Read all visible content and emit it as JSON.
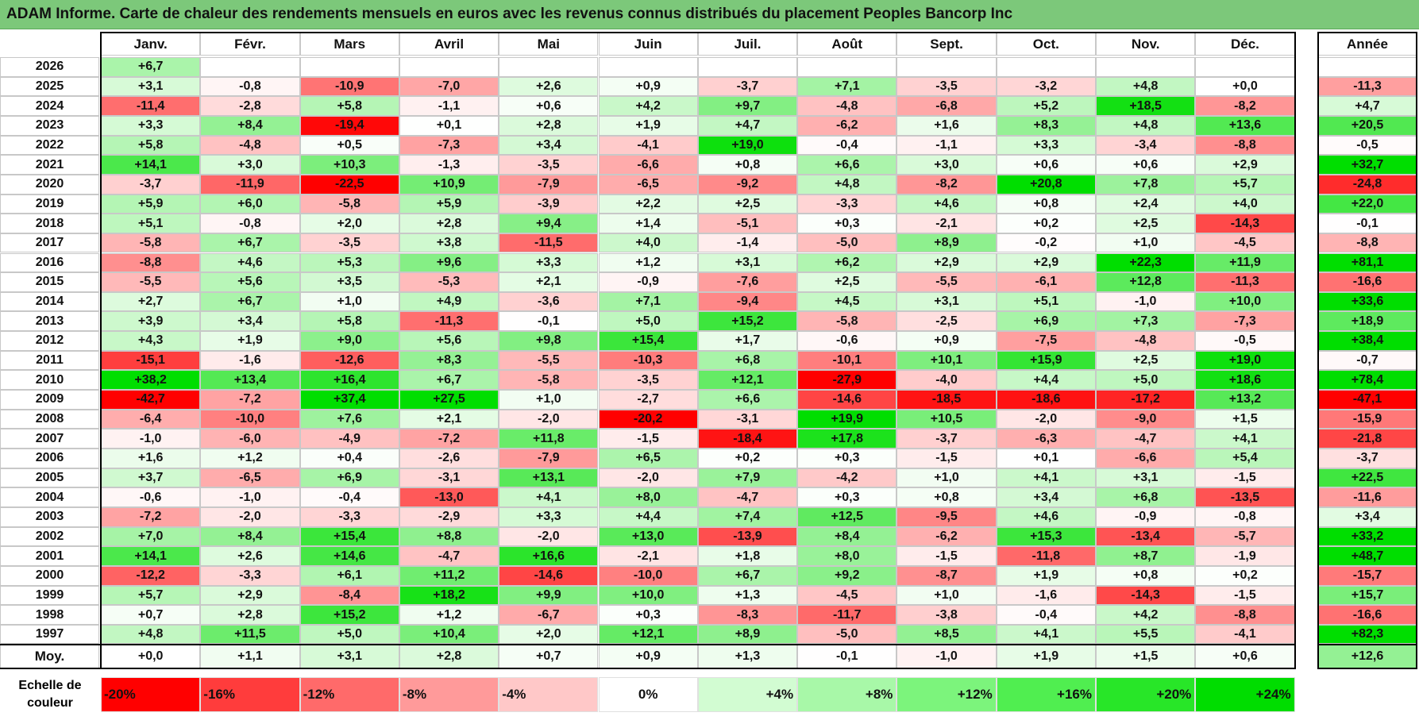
{
  "title": "ADAM Informe. Carte de chaleur des rendements mensuels en euros avec les revenus connus distribués du placement Peoples Bancorp Inc",
  "chart_data": {
    "type": "heatmap",
    "months": [
      "Janv.",
      "Févr.",
      "Mars",
      "Avril",
      "Mai",
      "Juin",
      "Juil.",
      "Août",
      "Sept.",
      "Oct.",
      "Nov.",
      "Déc."
    ],
    "year_header": "Année",
    "rows": [
      {
        "year": "2026",
        "months": [
          "+6,7",
          "",
          "",
          "",
          "",
          "",
          "",
          "",
          "",
          "",
          "",
          ""
        ],
        "annual": ""
      },
      {
        "year": "2025",
        "months": [
          "+3,1",
          "-0,8",
          "-10,9",
          "-7,0",
          "+2,6",
          "+0,9",
          "-3,7",
          "+7,1",
          "-3,5",
          "-3,2",
          "+4,8",
          "+0,0"
        ],
        "annual": "-11,3"
      },
      {
        "year": "2024",
        "months": [
          "-11,4",
          "-2,8",
          "+5,8",
          "-1,1",
          "+0,6",
          "+4,2",
          "+9,7",
          "-4,8",
          "-6,8",
          "+5,2",
          "+18,5",
          "-8,2"
        ],
        "annual": "+4,7"
      },
      {
        "year": "2023",
        "months": [
          "+3,3",
          "+8,4",
          "-19,4",
          "+0,1",
          "+2,8",
          "+1,9",
          "+4,7",
          "-6,2",
          "+1,6",
          "+8,3",
          "+4,8",
          "+13,6"
        ],
        "annual": "+20,5"
      },
      {
        "year": "2022",
        "months": [
          "+5,8",
          "-4,8",
          "+0,5",
          "-7,3",
          "+3,4",
          "-4,1",
          "+19,0",
          "-0,4",
          "-1,1",
          "+3,3",
          "-3,4",
          "-8,8"
        ],
        "annual": "-0,5"
      },
      {
        "year": "2021",
        "months": [
          "+14,1",
          "+3,0",
          "+10,3",
          "-1,3",
          "-3,5",
          "-6,6",
          "+0,8",
          "+6,6",
          "+3,0",
          "+0,6",
          "+0,6",
          "+2,9"
        ],
        "annual": "+32,7"
      },
      {
        "year": "2020",
        "months": [
          "-3,7",
          "-11,9",
          "-22,5",
          "+10,9",
          "-7,9",
          "-6,5",
          "-9,2",
          "+4,8",
          "-8,2",
          "+20,8",
          "+7,8",
          "+5,7"
        ],
        "annual": "-24,8"
      },
      {
        "year": "2019",
        "months": [
          "+5,9",
          "+6,0",
          "-5,8",
          "+5,9",
          "-3,9",
          "+2,2",
          "+2,5",
          "-3,3",
          "+4,6",
          "+0,8",
          "+2,4",
          "+4,0"
        ],
        "annual": "+22,0"
      },
      {
        "year": "2018",
        "months": [
          "+5,1",
          "-0,8",
          "+2,0",
          "+2,8",
          "+9,4",
          "+1,4",
          "-5,1",
          "+0,3",
          "-2,1",
          "+0,2",
          "+2,5",
          "-14,3"
        ],
        "annual": "-0,1"
      },
      {
        "year": "2017",
        "months": [
          "-5,8",
          "+6,7",
          "-3,5",
          "+3,8",
          "-11,5",
          "+4,0",
          "-1,4",
          "-5,0",
          "+8,9",
          "-0,2",
          "+1,0",
          "-4,5"
        ],
        "annual": "-8,8"
      },
      {
        "year": "2016",
        "months": [
          "-8,8",
          "+4,6",
          "+5,3",
          "+9,6",
          "+3,3",
          "+1,2",
          "+3,1",
          "+6,2",
          "+2,9",
          "+2,9",
          "+22,3",
          "+11,9"
        ],
        "annual": "+81,1"
      },
      {
        "year": "2015",
        "months": [
          "-5,5",
          "+5,6",
          "+3,5",
          "-5,3",
          "+2,1",
          "-0,9",
          "-7,6",
          "+2,5",
          "-5,5",
          "-6,1",
          "+12,8",
          "-11,3"
        ],
        "annual": "-16,6"
      },
      {
        "year": "2014",
        "months": [
          "+2,7",
          "+6,7",
          "+1,0",
          "+4,9",
          "-3,6",
          "+7,1",
          "-9,4",
          "+4,5",
          "+3,1",
          "+5,1",
          "-1,0",
          "+10,0"
        ],
        "annual": "+33,6"
      },
      {
        "year": "2013",
        "months": [
          "+3,9",
          "+3,4",
          "+5,8",
          "-11,3",
          "-0,1",
          "+5,0",
          "+15,2",
          "-5,8",
          "-2,5",
          "+6,9",
          "+7,3",
          "-7,3"
        ],
        "annual": "+18,9"
      },
      {
        "year": "2012",
        "months": [
          "+4,3",
          "+1,9",
          "+9,0",
          "+5,6",
          "+9,8",
          "+15,4",
          "+1,7",
          "-0,6",
          "+0,9",
          "-7,5",
          "-4,8",
          "-0,5"
        ],
        "annual": "+38,4"
      },
      {
        "year": "2011",
        "months": [
          "-15,1",
          "-1,6",
          "-12,6",
          "+8,3",
          "-5,5",
          "-10,3",
          "+6,8",
          "-10,1",
          "+10,1",
          "+15,9",
          "+2,5",
          "+19,0"
        ],
        "annual": "-0,7"
      },
      {
        "year": "2010",
        "months": [
          "+38,2",
          "+13,4",
          "+16,4",
          "+6,7",
          "-5,8",
          "-3,5",
          "+12,1",
          "-27,9",
          "-4,0",
          "+4,4",
          "+5,0",
          "+18,6"
        ],
        "annual": "+78,4"
      },
      {
        "year": "2009",
        "months": [
          "-42,7",
          "-7,2",
          "+37,4",
          "+27,5",
          "+1,0",
          "-2,7",
          "+6,6",
          "-14,6",
          "-18,5",
          "-18,6",
          "-17,2",
          "+13,2"
        ],
        "annual": "-47,1"
      },
      {
        "year": "2008",
        "months": [
          "-6,4",
          "-10,0",
          "+7,6",
          "+2,1",
          "-2,0",
          "-20,2",
          "-3,1",
          "+19,9",
          "+10,5",
          "-2,0",
          "-9,0",
          "+1,5"
        ],
        "annual": "-15,9"
      },
      {
        "year": "2007",
        "months": [
          "-1,0",
          "-6,0",
          "-4,9",
          "-7,2",
          "+11,8",
          "-1,5",
          "-18,4",
          "+17,8",
          "-3,7",
          "-6,3",
          "-4,7",
          "+4,1"
        ],
        "annual": "-21,8"
      },
      {
        "year": "2006",
        "months": [
          "+1,6",
          "+1,2",
          "+0,4",
          "-2,6",
          "-7,9",
          "+6,5",
          "+0,2",
          "+0,3",
          "-1,5",
          "+0,1",
          "-6,6",
          "+5,4"
        ],
        "annual": "-3,7"
      },
      {
        "year": "2005",
        "months": [
          "+3,7",
          "-6,5",
          "+6,9",
          "-3,1",
          "+13,1",
          "-2,0",
          "+7,9",
          "-4,2",
          "+1,0",
          "+4,1",
          "+3,1",
          "-1,5"
        ],
        "annual": "+22,5"
      },
      {
        "year": "2004",
        "months": [
          "-0,6",
          "-1,0",
          "-0,4",
          "-13,0",
          "+4,1",
          "+8,0",
          "-4,7",
          "+0,3",
          "+0,8",
          "+3,4",
          "+6,8",
          "-13,5"
        ],
        "annual": "-11,6"
      },
      {
        "year": "2003",
        "months": [
          "-7,2",
          "-2,0",
          "-3,3",
          "-2,9",
          "+3,3",
          "+4,4",
          "+7,4",
          "+12,5",
          "-9,5",
          "+4,6",
          "-0,9",
          "-0,8"
        ],
        "annual": "+3,4"
      },
      {
        "year": "2002",
        "months": [
          "+7,0",
          "+8,4",
          "+15,4",
          "+8,8",
          "-2,0",
          "+13,0",
          "-13,9",
          "+8,4",
          "-6,2",
          "+15,3",
          "-13,4",
          "-5,7"
        ],
        "annual": "+33,2"
      },
      {
        "year": "2001",
        "months": [
          "+14,1",
          "+2,6",
          "+14,6",
          "-4,7",
          "+16,6",
          "-2,1",
          "+1,8",
          "+8,0",
          "-1,5",
          "-11,8",
          "+8,7",
          "-1,9"
        ],
        "annual": "+48,7"
      },
      {
        "year": "2000",
        "months": [
          "-12,2",
          "-3,3",
          "+6,1",
          "+11,2",
          "-14,6",
          "-10,0",
          "+6,7",
          "+9,2",
          "-8,7",
          "+1,9",
          "+0,8",
          "+0,2"
        ],
        "annual": "-15,7"
      },
      {
        "year": "1999",
        "months": [
          "+5,7",
          "+2,9",
          "-8,4",
          "+18,2",
          "+9,9",
          "+10,0",
          "+1,3",
          "-4,5",
          "+1,0",
          "-1,6",
          "-14,3",
          "-1,5"
        ],
        "annual": "+15,7"
      },
      {
        "year": "1998",
        "months": [
          "+0,7",
          "+2,8",
          "+15,2",
          "+1,2",
          "-6,7",
          "+0,3",
          "-8,3",
          "-11,7",
          "-3,8",
          "-0,4",
          "+4,2",
          "-8,8"
        ],
        "annual": "-16,6"
      },
      {
        "year": "1997",
        "months": [
          "+4,8",
          "+11,5",
          "+5,0",
          "+10,4",
          "+2,0",
          "+12,1",
          "+8,9",
          "-5,0",
          "+8,5",
          "+4,1",
          "+5,5",
          "-4,1"
        ],
        "annual": "+82,3"
      }
    ],
    "average": {
      "label": "Moy.",
      "months": [
        "+0,0",
        "+1,1",
        "+3,1",
        "+2,8",
        "+0,7",
        "+0,9",
        "+1,3",
        "-0,1",
        "-1,0",
        "+1,9",
        "+1,5",
        "+0,6"
      ],
      "annual": "+12,6"
    },
    "color_scale": {
      "label": "Echelle de couleur",
      "steps": [
        {
          "label": "-20%",
          "value": -20,
          "color": "#ff0000"
        },
        {
          "label": "-16%",
          "value": -16,
          "color": "#ff3c3c"
        },
        {
          "label": "-12%",
          "value": -12,
          "color": "#ff6a6a"
        },
        {
          "label": "-8%",
          "value": -8,
          "color": "#ff9a9a"
        },
        {
          "label": "-4%",
          "value": -4,
          "color": "#ffc8c8"
        },
        {
          "label": "0%",
          "value": 0,
          "color": "#ffffff"
        },
        {
          "label": "+4%",
          "value": 4,
          "color": "#d2fcd2"
        },
        {
          "label": "+8%",
          "value": 8,
          "color": "#a8f8a8"
        },
        {
          "label": "+12%",
          "value": 12,
          "color": "#7cf47c"
        },
        {
          "label": "+16%",
          "value": 16,
          "color": "#50ee50"
        },
        {
          "label": "+20%",
          "value": 20,
          "color": "#28e628"
        },
        {
          "label": "+24%",
          "value": 24,
          "color": "#00dd00"
        }
      ]
    }
  }
}
